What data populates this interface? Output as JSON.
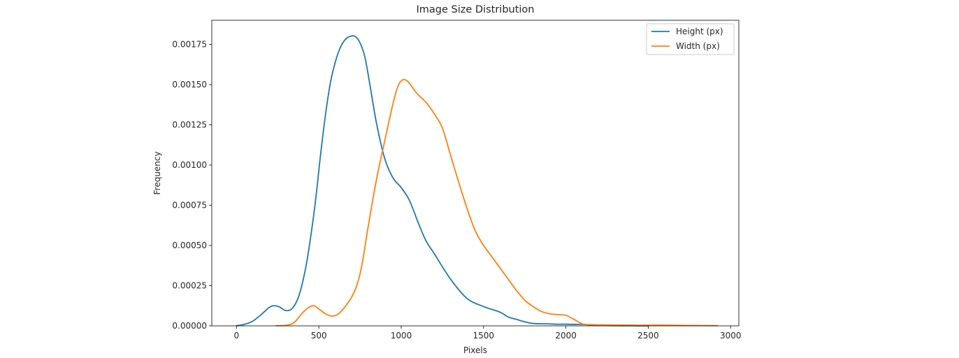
{
  "chart_data": {
    "type": "line",
    "title": "Image Size Distribution",
    "xlabel": "Pixels",
    "ylabel": "Frequency",
    "xlim": [
      -150,
      3050
    ],
    "ylim": [
      0,
      0.0019
    ],
    "xticks": [
      0,
      500,
      1000,
      1500,
      2000,
      2500,
      3000
    ],
    "xtick_labels": [
      "0",
      "500",
      "1000",
      "1500",
      "2000",
      "2500",
      "3000"
    ],
    "yticks": [
      0,
      0.00025,
      0.0005,
      0.00075,
      0.001,
      0.00125,
      0.0015,
      0.00175
    ],
    "ytick_labels": [
      "0.00000",
      "0.00025",
      "0.00050",
      "0.00075",
      "0.00100",
      "0.00125",
      "0.00150",
      "0.00175"
    ],
    "grid": false,
    "legend_position": "top-right",
    "series": [
      {
        "name": "Height (px)",
        "color": "#1f77b4",
        "x": [
          0,
          50,
          100,
          150,
          200,
          230,
          260,
          300,
          340,
          380,
          420,
          450,
          480,
          510,
          540,
          570,
          600,
          630,
          660,
          690,
          720,
          750,
          780,
          810,
          850,
          900,
          950,
          1000,
          1050,
          1100,
          1150,
          1200,
          1300,
          1400,
          1500,
          1600,
          1650,
          1700,
          1750,
          1800,
          1850,
          1900,
          1950,
          2000,
          2050,
          2100,
          2150,
          2200,
          2250,
          2300,
          2400,
          2500
        ],
        "values": [
          1e-06,
          1e-05,
          3e-05,
          7e-05,
          0.000115,
          0.000125,
          0.000118,
          9.5e-05,
          0.00011,
          0.00019,
          0.00036,
          0.00055,
          0.00078,
          0.00106,
          0.00131,
          0.00151,
          0.00164,
          0.00173,
          0.00178,
          0.0018,
          0.0018,
          0.00176,
          0.00167,
          0.0015,
          0.00126,
          0.00104,
          0.00092,
          0.00086,
          0.00078,
          0.00065,
          0.00053,
          0.00045,
          0.00029,
          0.00017,
          0.00012,
          8.5e-05,
          5.5e-05,
          4e-05,
          2.5e-05,
          1.5e-05,
          1.3e-05,
          1.2e-05,
          1e-05,
          1e-05,
          9e-06,
          9e-06,
          6e-06,
          4e-06,
          2e-06,
          1e-06,
          5e-07,
          2e-07
        ]
      },
      {
        "name": "Width (px)",
        "color": "#ff7f0e",
        "x": [
          240,
          300,
          350,
          400,
          440,
          470,
          500,
          540,
          580,
          620,
          660,
          700,
          730,
          760,
          800,
          850,
          900,
          950,
          980,
          1010,
          1040,
          1070,
          1100,
          1150,
          1200,
          1250,
          1300,
          1350,
          1400,
          1450,
          1500,
          1550,
          1600,
          1650,
          1700,
          1750,
          1800,
          1850,
          1900,
          1950,
          2000,
          2050,
          2100,
          2150,
          2200,
          2300,
          2400,
          2500,
          2600,
          2700,
          2800,
          2920
        ],
        "values": [
          5e-07,
          3e-06,
          2e-05,
          8e-05,
          0.000115,
          0.000125,
          0.000105,
          7.5e-05,
          6e-05,
          7.5e-05,
          0.00012,
          0.00018,
          0.00025,
          0.00037,
          0.00062,
          0.00091,
          0.00115,
          0.00138,
          0.00149,
          0.00153,
          0.00152,
          0.00148,
          0.00144,
          0.00139,
          0.00132,
          0.00123,
          0.00106,
          0.00089,
          0.00073,
          0.00059,
          0.0005,
          0.00043,
          0.00036,
          0.00029,
          0.00022,
          0.00016,
          0.00012,
          9e-05,
          7.5e-05,
          7e-05,
          6.5e-05,
          4e-05,
          1.2e-05,
          8e-06,
          6e-06,
          5e-06,
          4e-06,
          4e-06,
          4e-06,
          3e-06,
          2e-06,
          1e-06
        ]
      }
    ]
  }
}
